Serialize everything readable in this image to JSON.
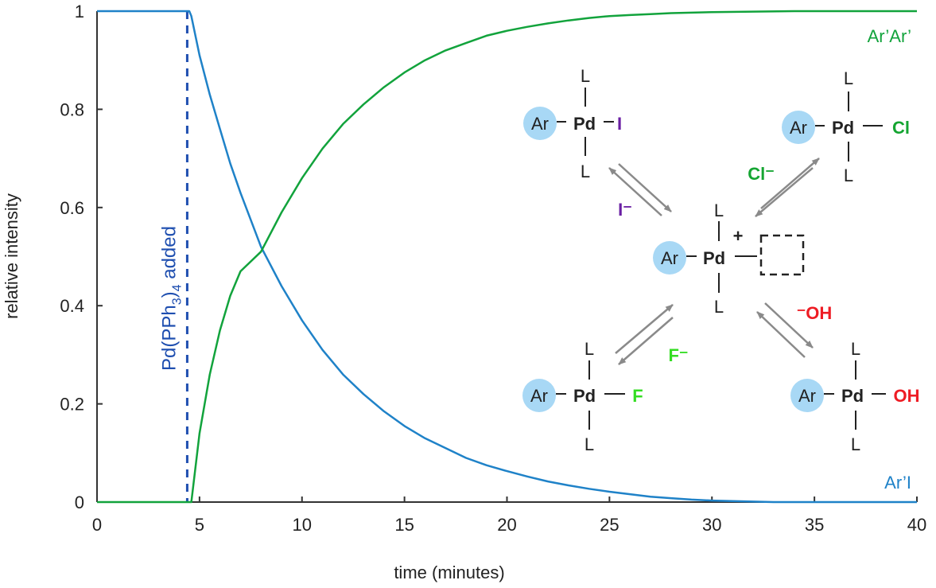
{
  "colors": {
    "blue": "#1f82c8",
    "green": "#12a33c",
    "dashed_blue": "#1f4fb0",
    "iodide_purple": "#6a1fa3",
    "chloride_green": "#15a532",
    "fluoride_green": "#33dd22",
    "hydroxide_red": "#ee1c24",
    "aryl_circle": "#a8d8f5",
    "arrow_gray": "#8a8a8a"
  },
  "chart_data": {
    "type": "line",
    "xlabel": "time (minutes)",
    "ylabel": "relative intensity",
    "xlim": [
      0,
      40
    ],
    "ylim": [
      0,
      1
    ],
    "xticks": [
      "0",
      "5",
      "10",
      "15",
      "20",
      "25",
      "30",
      "35",
      "40"
    ],
    "yticks": [
      "0",
      "0.2",
      "0.4",
      "0.6",
      "0.8",
      "1"
    ],
    "grid": false,
    "series": [
      {
        "name": "Ar’I",
        "color": "#1f82c8",
        "x": [
          0,
          4.5,
          4.5,
          4.6,
          5,
          5.5,
          6,
          6.5,
          7,
          8,
          9,
          10,
          11,
          12,
          13,
          14,
          15,
          16,
          17,
          18,
          19,
          20,
          21,
          22,
          23,
          24,
          25,
          26,
          27,
          28,
          29,
          30,
          31,
          32,
          33,
          34,
          35,
          36,
          37,
          38,
          39,
          40
        ],
        "y": [
          1,
          1,
          1,
          0.99,
          0.91,
          0.83,
          0.76,
          0.69,
          0.63,
          0.52,
          0.44,
          0.37,
          0.31,
          0.26,
          0.22,
          0.185,
          0.155,
          0.13,
          0.11,
          0.09,
          0.075,
          0.063,
          0.052,
          0.042,
          0.034,
          0.027,
          0.021,
          0.016,
          0.011,
          0.008,
          0.005,
          0.003,
          0.002,
          0.001,
          0.0,
          0.0,
          0.0,
          0.0,
          0.0,
          0.0,
          0.0,
          0.0
        ]
      },
      {
        "name": "Ar’Ar’",
        "color": "#12a33c",
        "x": [
          0,
          4.5,
          4.6,
          5,
          5.5,
          6,
          6.5,
          7,
          8,
          9,
          10,
          11,
          12,
          13,
          14,
          15,
          16,
          17,
          18,
          19,
          20,
          21,
          22,
          23,
          24,
          25,
          26,
          27,
          28,
          29,
          30,
          32,
          34,
          36,
          38,
          40
        ],
        "y": [
          0,
          0,
          0.0,
          0.14,
          0.26,
          0.35,
          0.42,
          0.47,
          0.51,
          0.59,
          0.66,
          0.72,
          0.77,
          0.81,
          0.845,
          0.875,
          0.9,
          0.92,
          0.935,
          0.95,
          0.96,
          0.968,
          0.975,
          0.981,
          0.986,
          0.99,
          0.992,
          0.994,
          0.996,
          0.997,
          0.998,
          0.999,
          1.0,
          1.0,
          1.0,
          1.0
        ]
      }
    ],
    "annotations": {
      "addition_time": 4.4,
      "addition_label": "Pd(PPh",
      "addition_label_sub1": "3",
      "addition_label_mid": ")",
      "addition_label_sub2": "4",
      "addition_label_end": " added"
    }
  },
  "scheme": {
    "aryl": "Ar",
    "metal": "Pd",
    "ligand": "L",
    "plus": "+",
    "iodo_ligand": "I",
    "chloro_ligand": "Cl",
    "fluoro_ligand": "F",
    "hydroxo_ligand": "OH",
    "iodide": "I⁻",
    "chloride": "Cl⁻",
    "fluoride": "F⁻",
    "hydroxide": "⁻OH"
  }
}
